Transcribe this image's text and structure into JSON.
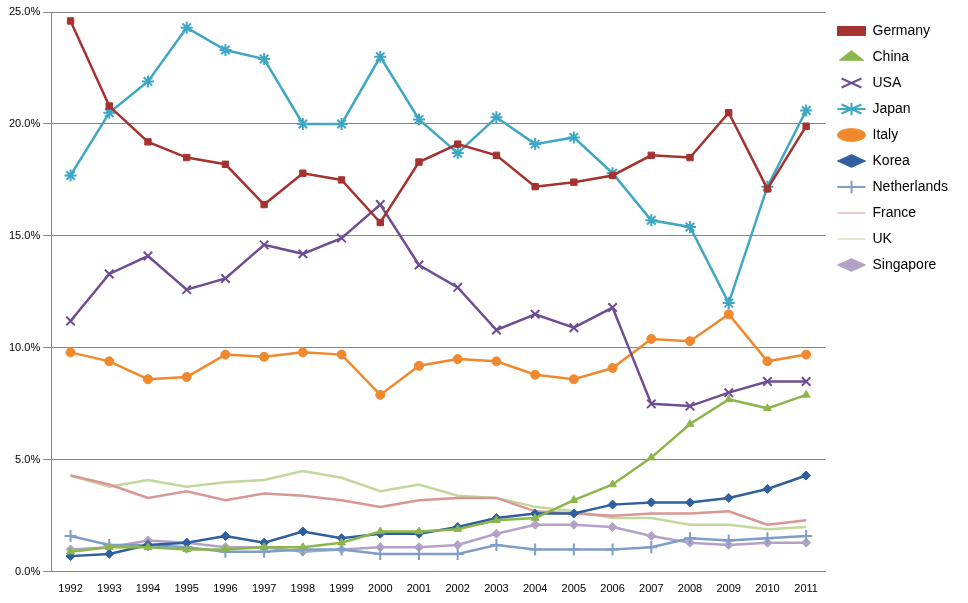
{
  "chart_data": {
    "type": "line",
    "categories": [
      "1992",
      "1993",
      "1994",
      "1995",
      "1996",
      "1997",
      "1998",
      "1999",
      "2000",
      "2001",
      "2002",
      "2003",
      "2004",
      "2005",
      "2006",
      "2007",
      "2008",
      "2009",
      "2010",
      "2011"
    ],
    "series": [
      {
        "name": "Germany",
        "color": "#A5322F",
        "marker": "square",
        "values": [
          24.6,
          20.8,
          19.2,
          18.5,
          18.2,
          16.4,
          17.8,
          17.5,
          15.6,
          18.3,
          19.1,
          18.6,
          17.2,
          17.4,
          17.7,
          18.6,
          18.5,
          20.5,
          17.1,
          19.9
        ]
      },
      {
        "name": "China",
        "color": "#8CB54A",
        "marker": "triangle",
        "values": [
          0.9,
          1.1,
          1.1,
          1.0,
          1.0,
          1.1,
          1.1,
          1.3,
          1.8,
          1.8,
          1.9,
          2.3,
          2.4,
          3.2,
          3.9,
          5.1,
          6.6,
          7.7,
          7.3,
          7.9
        ]
      },
      {
        "name": "USA",
        "color": "#6E4E93",
        "marker": "x",
        "values": [
          11.2,
          13.3,
          14.1,
          12.6,
          13.1,
          14.6,
          14.2,
          14.9,
          16.4,
          13.7,
          12.7,
          10.8,
          11.5,
          10.9,
          11.8,
          7.5,
          7.4,
          8.0,
          8.5,
          8.5
        ]
      },
      {
        "name": "Japan",
        "color": "#3FA7C3",
        "marker": "star",
        "values": [
          17.7,
          20.5,
          21.9,
          24.3,
          23.3,
          22.9,
          20.0,
          20.0,
          23.0,
          20.2,
          18.7,
          20.3,
          19.1,
          19.4,
          17.8,
          15.7,
          15.4,
          12.0,
          17.2,
          20.6
        ]
      },
      {
        "name": "Italy",
        "color": "#F0892E",
        "marker": "circle",
        "values": [
          9.8,
          9.4,
          8.6,
          8.7,
          9.7,
          9.6,
          9.8,
          9.7,
          7.9,
          9.2,
          9.5,
          9.4,
          8.8,
          8.6,
          9.1,
          10.4,
          10.3,
          11.5,
          9.4,
          9.7
        ]
      },
      {
        "name": "Korea",
        "color": "#2F5F9E",
        "marker": "diamond",
        "values": [
          0.7,
          0.8,
          1.2,
          1.3,
          1.6,
          1.3,
          1.8,
          1.5,
          1.7,
          1.7,
          2.0,
          2.4,
          2.6,
          2.6,
          3.0,
          3.1,
          3.1,
          3.3,
          3.7,
          4.3
        ]
      },
      {
        "name": "Netherlands",
        "color": "#7E9EC8",
        "marker": "plus",
        "values": [
          1.6,
          1.2,
          1.2,
          1.1,
          0.9,
          0.9,
          1.0,
          1.0,
          0.8,
          0.8,
          0.8,
          1.2,
          1.0,
          1.0,
          1.0,
          1.1,
          1.5,
          1.4,
          1.5,
          1.6
        ]
      },
      {
        "name": "France",
        "color": "#D99694",
        "marker": "none",
        "values": [
          4.3,
          3.9,
          3.3,
          3.6,
          3.2,
          3.5,
          3.4,
          3.2,
          2.9,
          3.2,
          3.3,
          3.3,
          2.7,
          2.6,
          2.5,
          2.6,
          2.6,
          2.7,
          2.1,
          2.3
        ]
      },
      {
        "name": "UK",
        "color": "#C3D69B",
        "marker": "none",
        "values": [
          4.3,
          3.8,
          4.1,
          3.8,
          4.0,
          4.1,
          4.5,
          4.2,
          3.6,
          3.9,
          3.4,
          3.3,
          2.9,
          2.7,
          2.4,
          2.4,
          2.1,
          2.1,
          1.9,
          2.0
        ]
      },
      {
        "name": "Singapore",
        "color": "#B3A2C7",
        "marker": "diamond",
        "values": [
          1.0,
          1.1,
          1.4,
          1.3,
          1.1,
          1.1,
          0.9,
          1.0,
          1.1,
          1.1,
          1.2,
          1.7,
          2.1,
          2.1,
          2.0,
          1.6,
          1.3,
          1.2,
          1.3,
          1.3
        ]
      }
    ],
    "ylim": [
      0,
      25
    ],
    "yticks": [
      {
        "value": 0,
        "label": "0.0%"
      },
      {
        "value": 5,
        "label": "5.0%"
      },
      {
        "value": 10,
        "label": "10.0%"
      },
      {
        "value": 15,
        "label": "15.0%"
      },
      {
        "value": 20,
        "label": "20.0%"
      },
      {
        "value": 25,
        "label": "25.0%"
      }
    ],
    "grid": true,
    "legend": "right"
  }
}
